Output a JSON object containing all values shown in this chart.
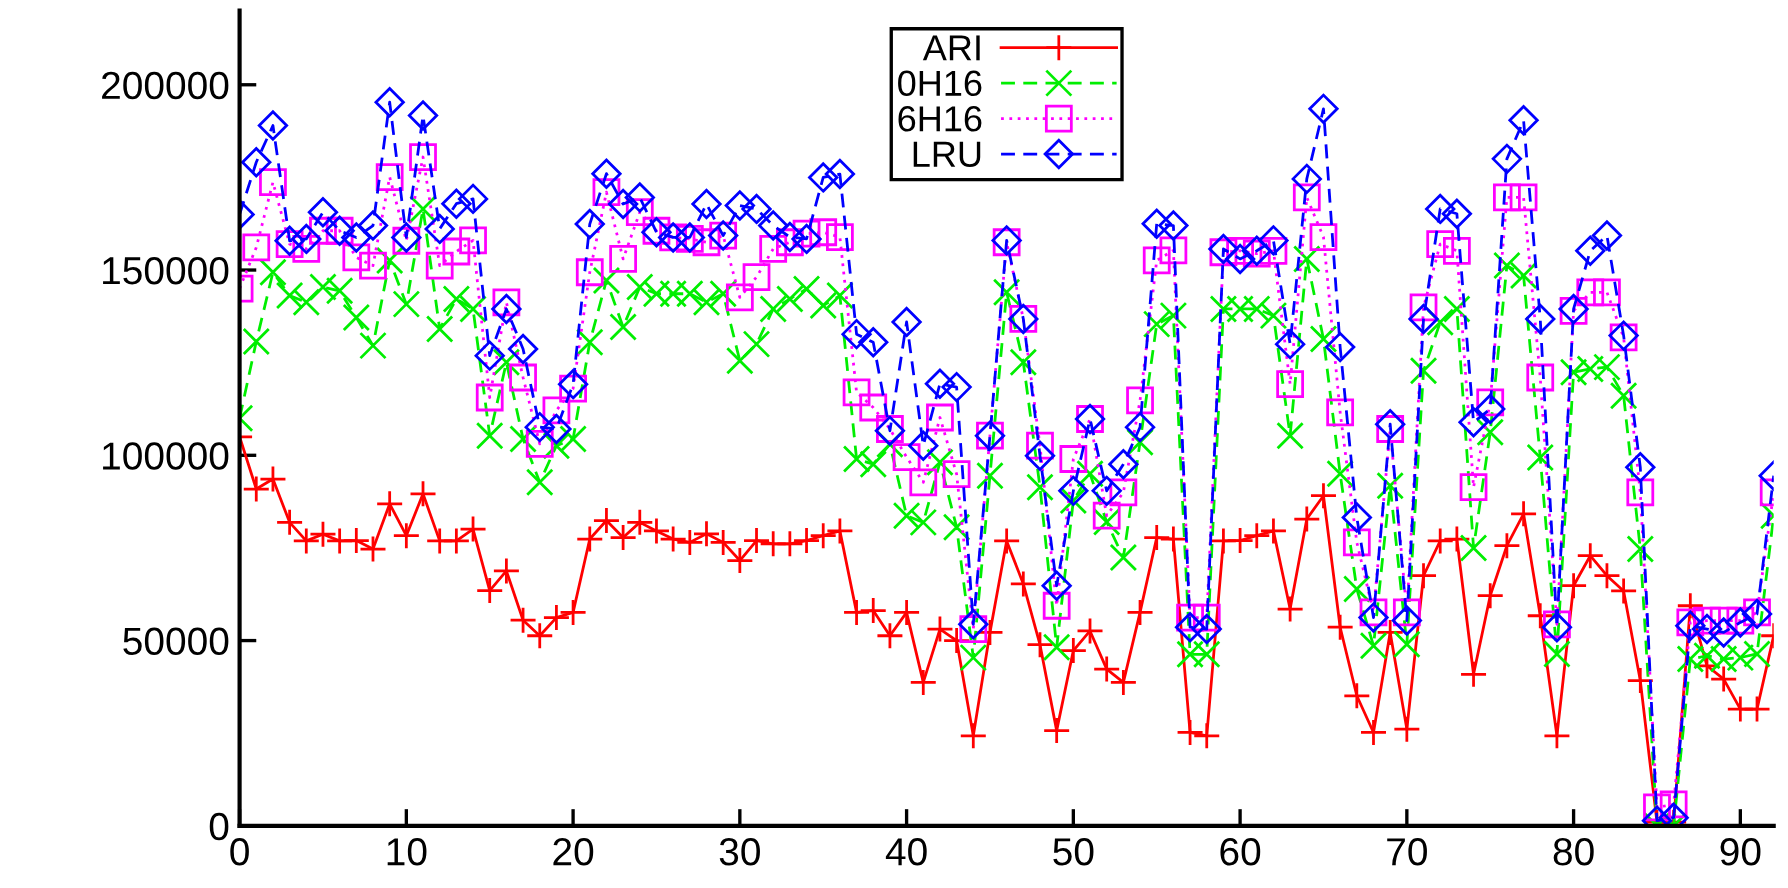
{
  "chart_data": {
    "type": "line",
    "xlim": [
      0,
      92
    ],
    "ylim": [
      0,
      220000
    ],
    "xticks": [
      0,
      10,
      20,
      30,
      40,
      50,
      60,
      70,
      80,
      90
    ],
    "yticks": [
      0,
      50000,
      100000,
      150000,
      200000
    ],
    "grid": false,
    "legend": "top",
    "x": [
      0,
      1,
      2,
      3,
      4,
      5,
      6,
      7,
      8,
      9,
      10,
      11,
      12,
      13,
      14,
      15,
      16,
      17,
      18,
      19,
      20,
      21,
      22,
      23,
      24,
      25,
      26,
      27,
      28,
      29,
      30,
      31,
      32,
      33,
      34,
      35,
      36,
      37,
      38,
      39,
      40,
      41,
      42,
      43,
      44,
      45,
      46,
      47,
      48,
      49,
      50,
      51,
      52,
      53,
      54,
      55,
      56,
      57,
      58,
      59,
      60,
      61,
      62,
      63,
      64,
      65,
      66,
      67,
      68,
      69,
      70,
      71,
      72,
      73,
      74,
      75,
      76,
      77,
      78,
      79,
      80,
      81,
      82,
      83,
      84,
      85,
      86,
      87,
      88,
      89,
      90,
      91,
      92
    ],
    "series": [
      {
        "name": "ARI",
        "color": "#ff0000",
        "marker": "plus",
        "line_style": "solid",
        "values": [
          105000,
          90900,
          93600,
          81900,
          76900,
          78700,
          76900,
          77000,
          74700,
          86900,
          78300,
          89600,
          76900,
          76900,
          80100,
          63500,
          68800,
          55500,
          51300,
          56200,
          57600,
          77400,
          82400,
          77800,
          81900,
          79600,
          77400,
          76500,
          78800,
          76500,
          71600,
          77000,
          76100,
          76100,
          77000,
          78300,
          79600,
          57600,
          58100,
          51300,
          57600,
          38700,
          53100,
          50000,
          24300,
          52200,
          76900,
          65300,
          48900,
          25700,
          47300,
          52600,
          42300,
          38700,
          57600,
          77800,
          77400,
          25200,
          24300,
          76900,
          77000,
          78300,
          79600,
          58500,
          82800,
          89100,
          53600,
          35100,
          25200,
          52200,
          26100,
          67500,
          76900,
          77400,
          40900,
          62100,
          75600,
          84200,
          56700,
          24300,
          64800,
          72900,
          67500,
          63400,
          39200,
          1000,
          1000,
          59400,
          43200,
          39600,
          31500,
          31500,
          51300
        ]
      },
      {
        "name": "0H16",
        "color": "#00ee00",
        "marker": "cross",
        "line_style": "dashed",
        "values": [
          110000,
          130700,
          149400,
          143100,
          141300,
          145400,
          144400,
          137200,
          129600,
          152600,
          140800,
          166500,
          134100,
          142200,
          139500,
          105300,
          125100,
          104400,
          92700,
          102600,
          104400,
          130500,
          147200,
          134600,
          145400,
          143600,
          143600,
          143600,
          141300,
          143600,
          125500,
          130000,
          139500,
          142200,
          144900,
          140400,
          143100,
          99000,
          97600,
          103000,
          83700,
          81900,
          98100,
          80600,
          45400,
          94500,
          144000,
          125100,
          91400,
          48200,
          87800,
          95000,
          82000,
          72400,
          103500,
          135400,
          137700,
          46300,
          46300,
          139500,
          139500,
          139500,
          137700,
          105300,
          153000,
          131400,
          95000,
          63900,
          48600,
          91800,
          49000,
          122800,
          135900,
          139500,
          75000,
          106200,
          151200,
          148500,
          99400,
          46400,
          122400,
          123300,
          123800,
          116100,
          74700,
          0,
          0,
          45000,
          45900,
          45000,
          45400,
          46400,
          83700
        ]
      },
      {
        "name": "6H16",
        "color": "#ff00ff",
        "marker": "square",
        "line_style": "dotted",
        "values": [
          145000,
          156100,
          173700,
          157000,
          155700,
          160600,
          160600,
          153400,
          151200,
          175100,
          157900,
          180500,
          151200,
          155000,
          158000,
          115600,
          141300,
          121000,
          103100,
          112100,
          118000,
          149400,
          171000,
          153000,
          165600,
          160600,
          158800,
          158400,
          157500,
          159300,
          142600,
          148100,
          155700,
          157500,
          159800,
          160200,
          158900,
          117000,
          112900,
          107100,
          99500,
          92700,
          110200,
          94900,
          53100,
          105300,
          157500,
          136800,
          102600,
          59400,
          99000,
          109800,
          83700,
          90000,
          114800,
          152600,
          155300,
          56200,
          56200,
          154800,
          155200,
          154400,
          155200,
          119200,
          169600,
          158900,
          111600,
          76500,
          57600,
          107100,
          57600,
          139900,
          157000,
          155200,
          91400,
          114300,
          169600,
          169600,
          121000,
          54400,
          139000,
          144000,
          144000,
          131800,
          90000,
          5000,
          5800,
          54900,
          55400,
          55400,
          55400,
          57600,
          90000
        ]
      },
      {
        "name": "LRU",
        "color": "#0000ff",
        "marker": "diamond",
        "line_style": "dashed",
        "values": [
          165000,
          179100,
          189000,
          157900,
          158400,
          165600,
          160600,
          158800,
          162000,
          195300,
          158800,
          191700,
          161100,
          167900,
          169200,
          126900,
          139500,
          128700,
          107600,
          107100,
          119200,
          162400,
          176000,
          167800,
          169600,
          160200,
          158800,
          158800,
          167800,
          159300,
          167400,
          166500,
          162000,
          158900,
          158400,
          175000,
          175900,
          132700,
          130500,
          106600,
          136000,
          102600,
          119300,
          118400,
          54400,
          105300,
          158000,
          136800,
          99900,
          64800,
          90400,
          109800,
          90400,
          97600,
          107600,
          162500,
          162000,
          53600,
          53100,
          155700,
          153000,
          155200,
          158000,
          130000,
          174600,
          193500,
          129200,
          83200,
          56200,
          108400,
          55400,
          136800,
          166500,
          165200,
          108900,
          112500,
          180000,
          190400,
          136800,
          53600,
          139500,
          155200,
          159300,
          132300,
          96800,
          1400,
          2200,
          54000,
          53100,
          52200,
          54900,
          57200,
          94500
        ]
      }
    ]
  }
}
